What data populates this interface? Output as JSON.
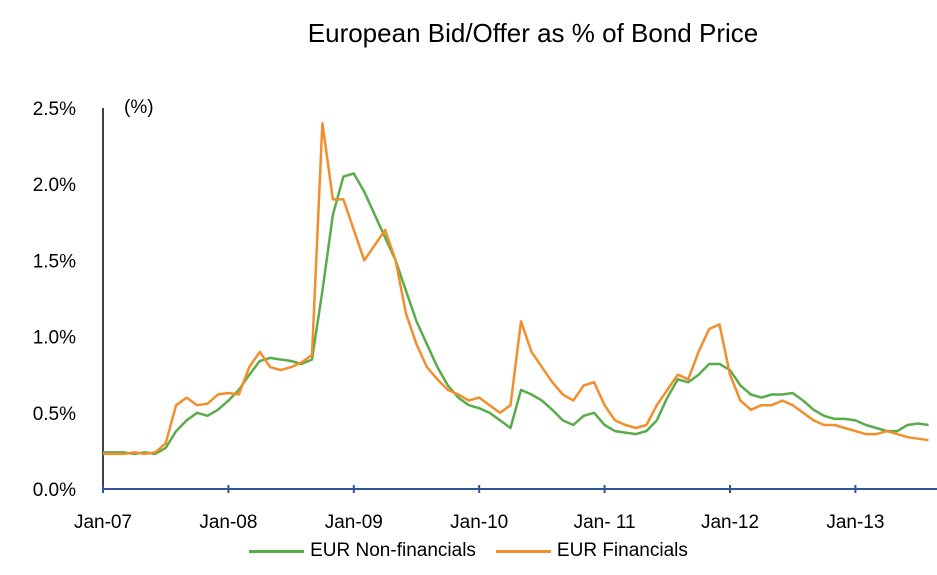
{
  "chart_data": {
    "type": "line",
    "title": "European Bid/Offer as % of Bond Price",
    "unit_label": "(%)",
    "xlabel": "",
    "ylabel": "",
    "x_ticks": [
      "Jan-07",
      "Jan-08",
      "Jan-09",
      "Jan-10",
      "Jan- 11",
      "Jan-12",
      "Jan-13"
    ],
    "x_range": [
      "2007-01",
      "2013-08"
    ],
    "ylim": [
      0,
      2.5
    ],
    "y_ticks": [
      "0.0%",
      "0.5%",
      "1.0%",
      "1.5%",
      "2.0%",
      "2.5%"
    ],
    "grid": false,
    "legend_position": "bottom",
    "series": [
      {
        "name": "EUR Non-financials",
        "color": "#5aac4a",
        "points": [
          [
            "2007-01",
            0.24
          ],
          [
            "2007-02",
            0.24
          ],
          [
            "2007-03",
            0.24
          ],
          [
            "2007-04",
            0.23
          ],
          [
            "2007-05",
            0.24
          ],
          [
            "2007-06",
            0.23
          ],
          [
            "2007-07",
            0.27
          ],
          [
            "2007-08",
            0.38
          ],
          [
            "2007-09",
            0.45
          ],
          [
            "2007-10",
            0.5
          ],
          [
            "2007-11",
            0.48
          ],
          [
            "2007-12",
            0.52
          ],
          [
            "2008-01",
            0.58
          ],
          [
            "2008-02",
            0.65
          ],
          [
            "2008-03",
            0.75
          ],
          [
            "2008-04",
            0.84
          ],
          [
            "2008-05",
            0.86
          ],
          [
            "2008-06",
            0.85
          ],
          [
            "2008-07",
            0.84
          ],
          [
            "2008-08",
            0.82
          ],
          [
            "2008-09",
            0.85
          ],
          [
            "2008-10",
            1.3
          ],
          [
            "2008-11",
            1.8
          ],
          [
            "2008-12",
            2.05
          ],
          [
            "2009-01",
            2.07
          ],
          [
            "2009-02",
            1.95
          ],
          [
            "2009-03",
            1.8
          ],
          [
            "2009-04",
            1.65
          ],
          [
            "2009-05",
            1.5
          ],
          [
            "2009-06",
            1.3
          ],
          [
            "2009-07",
            1.1
          ],
          [
            "2009-08",
            0.95
          ],
          [
            "2009-09",
            0.8
          ],
          [
            "2009-10",
            0.68
          ],
          [
            "2009-11",
            0.6
          ],
          [
            "2009-12",
            0.55
          ],
          [
            "2010-01",
            0.53
          ],
          [
            "2010-02",
            0.5
          ],
          [
            "2010-03",
            0.45
          ],
          [
            "2010-04",
            0.4
          ],
          [
            "2010-05",
            0.65
          ],
          [
            "2010-06",
            0.62
          ],
          [
            "2010-07",
            0.58
          ],
          [
            "2010-08",
            0.52
          ],
          [
            "2010-09",
            0.45
          ],
          [
            "2010-10",
            0.42
          ],
          [
            "2010-11",
            0.48
          ],
          [
            "2010-12",
            0.5
          ],
          [
            "2011-01",
            0.42
          ],
          [
            "2011-02",
            0.38
          ],
          [
            "2011-03",
            0.37
          ],
          [
            "2011-04",
            0.36
          ],
          [
            "2011-05",
            0.38
          ],
          [
            "2011-06",
            0.45
          ],
          [
            "2011-07",
            0.6
          ],
          [
            "2011-08",
            0.72
          ],
          [
            "2011-09",
            0.7
          ],
          [
            "2011-10",
            0.75
          ],
          [
            "2011-11",
            0.82
          ],
          [
            "2011-12",
            0.82
          ],
          [
            "2012-01",
            0.78
          ],
          [
            "2012-02",
            0.68
          ],
          [
            "2012-03",
            0.62
          ],
          [
            "2012-04",
            0.6
          ],
          [
            "2012-05",
            0.62
          ],
          [
            "2012-06",
            0.62
          ],
          [
            "2012-07",
            0.63
          ],
          [
            "2012-08",
            0.58
          ],
          [
            "2012-09",
            0.52
          ],
          [
            "2012-10",
            0.48
          ],
          [
            "2012-11",
            0.46
          ],
          [
            "2012-12",
            0.46
          ],
          [
            "2013-01",
            0.45
          ],
          [
            "2013-02",
            0.42
          ],
          [
            "2013-03",
            0.4
          ],
          [
            "2013-04",
            0.38
          ],
          [
            "2013-05",
            0.38
          ],
          [
            "2013-06",
            0.42
          ],
          [
            "2013-07",
            0.43
          ],
          [
            "2013-08",
            0.42
          ]
        ]
      },
      {
        "name": "EUR Financials",
        "color": "#f28e2b",
        "points": [
          [
            "2007-01",
            0.23
          ],
          [
            "2007-02",
            0.23
          ],
          [
            "2007-03",
            0.23
          ],
          [
            "2007-04",
            0.24
          ],
          [
            "2007-05",
            0.23
          ],
          [
            "2007-06",
            0.24
          ],
          [
            "2007-07",
            0.3
          ],
          [
            "2007-08",
            0.55
          ],
          [
            "2007-09",
            0.6
          ],
          [
            "2007-10",
            0.55
          ],
          [
            "2007-11",
            0.56
          ],
          [
            "2007-12",
            0.62
          ],
          [
            "2008-01",
            0.63
          ],
          [
            "2008-02",
            0.62
          ],
          [
            "2008-03",
            0.8
          ],
          [
            "2008-04",
            0.9
          ],
          [
            "2008-05",
            0.8
          ],
          [
            "2008-06",
            0.78
          ],
          [
            "2008-07",
            0.8
          ],
          [
            "2008-08",
            0.83
          ],
          [
            "2008-09",
            0.88
          ],
          [
            "2008-10",
            2.4
          ],
          [
            "2008-11",
            1.9
          ],
          [
            "2008-12",
            1.9
          ],
          [
            "2009-01",
            1.7
          ],
          [
            "2009-02",
            1.5
          ],
          [
            "2009-03",
            1.6
          ],
          [
            "2009-04",
            1.7
          ],
          [
            "2009-05",
            1.5
          ],
          [
            "2009-06",
            1.15
          ],
          [
            "2009-07",
            0.95
          ],
          [
            "2009-08",
            0.8
          ],
          [
            "2009-09",
            0.72
          ],
          [
            "2009-10",
            0.65
          ],
          [
            "2009-11",
            0.62
          ],
          [
            "2009-12",
            0.58
          ],
          [
            "2010-01",
            0.6
          ],
          [
            "2010-02",
            0.55
          ],
          [
            "2010-03",
            0.5
          ],
          [
            "2010-04",
            0.55
          ],
          [
            "2010-05",
            1.1
          ],
          [
            "2010-06",
            0.9
          ],
          [
            "2010-07",
            0.8
          ],
          [
            "2010-08",
            0.7
          ],
          [
            "2010-09",
            0.62
          ],
          [
            "2010-10",
            0.58
          ],
          [
            "2010-11",
            0.68
          ],
          [
            "2010-12",
            0.7
          ],
          [
            "2011-01",
            0.55
          ],
          [
            "2011-02",
            0.45
          ],
          [
            "2011-03",
            0.42
          ],
          [
            "2011-04",
            0.4
          ],
          [
            "2011-05",
            0.42
          ],
          [
            "2011-06",
            0.55
          ],
          [
            "2011-07",
            0.65
          ],
          [
            "2011-08",
            0.75
          ],
          [
            "2011-09",
            0.72
          ],
          [
            "2011-10",
            0.9
          ],
          [
            "2011-11",
            1.05
          ],
          [
            "2011-12",
            1.08
          ],
          [
            "2012-01",
            0.75
          ],
          [
            "2012-02",
            0.58
          ],
          [
            "2012-03",
            0.52
          ],
          [
            "2012-04",
            0.55
          ],
          [
            "2012-05",
            0.55
          ],
          [
            "2012-06",
            0.58
          ],
          [
            "2012-07",
            0.55
          ],
          [
            "2012-08",
            0.5
          ],
          [
            "2012-09",
            0.45
          ],
          [
            "2012-10",
            0.42
          ],
          [
            "2012-11",
            0.42
          ],
          [
            "2012-12",
            0.4
          ],
          [
            "2013-01",
            0.38
          ],
          [
            "2013-02",
            0.36
          ],
          [
            "2013-03",
            0.36
          ],
          [
            "2013-04",
            0.38
          ],
          [
            "2013-05",
            0.36
          ],
          [
            "2013-06",
            0.34
          ],
          [
            "2013-07",
            0.33
          ],
          [
            "2013-08",
            0.32
          ]
        ]
      }
    ]
  }
}
